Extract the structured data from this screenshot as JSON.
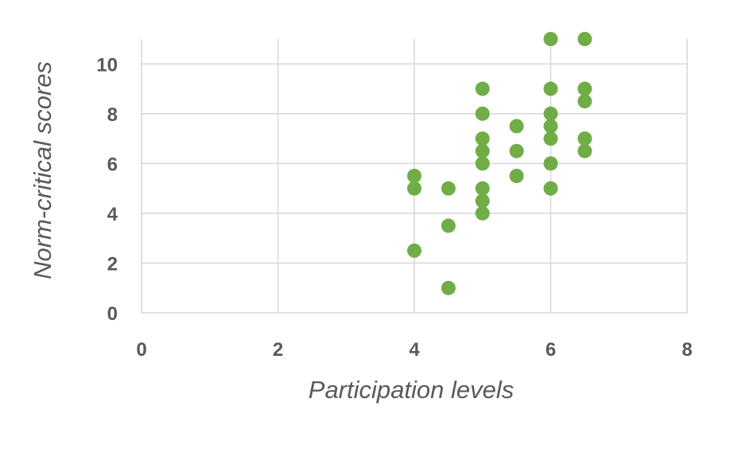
{
  "chart_data": {
    "type": "scatter",
    "title": "",
    "xlabel": "Participation levels",
    "ylabel": "Norm-critical scores",
    "xlim": [
      0,
      8
    ],
    "ylim": [
      0,
      11
    ],
    "x_ticks": [
      "0",
      "2",
      "4",
      "6",
      "8"
    ],
    "y_ticks": [
      "0",
      "2",
      "4",
      "6",
      "8",
      "10"
    ],
    "grid": true,
    "legend": "none",
    "marker_color": "#70ad47",
    "points": [
      {
        "x": 4,
        "y": 5.5
      },
      {
        "x": 4,
        "y": 5
      },
      {
        "x": 4,
        "y": 2.5
      },
      {
        "x": 4.5,
        "y": 5
      },
      {
        "x": 4.5,
        "y": 3.5
      },
      {
        "x": 4.5,
        "y": 1
      },
      {
        "x": 5,
        "y": 9
      },
      {
        "x": 5,
        "y": 8
      },
      {
        "x": 5,
        "y": 7
      },
      {
        "x": 5,
        "y": 6.5
      },
      {
        "x": 5,
        "y": 6
      },
      {
        "x": 5,
        "y": 5
      },
      {
        "x": 5,
        "y": 4.5
      },
      {
        "x": 5,
        "y": 4
      },
      {
        "x": 5.5,
        "y": 7.5
      },
      {
        "x": 5.5,
        "y": 6.5
      },
      {
        "x": 5.5,
        "y": 5.5
      },
      {
        "x": 6,
        "y": 11
      },
      {
        "x": 6,
        "y": 9
      },
      {
        "x": 6,
        "y": 8
      },
      {
        "x": 6,
        "y": 7.5
      },
      {
        "x": 6,
        "y": 7
      },
      {
        "x": 6,
        "y": 6
      },
      {
        "x": 6,
        "y": 5
      },
      {
        "x": 6.5,
        "y": 11
      },
      {
        "x": 6.5,
        "y": 9
      },
      {
        "x": 6.5,
        "y": 8.5
      },
      {
        "x": 6.5,
        "y": 7
      },
      {
        "x": 6.5,
        "y": 6.5
      }
    ]
  }
}
